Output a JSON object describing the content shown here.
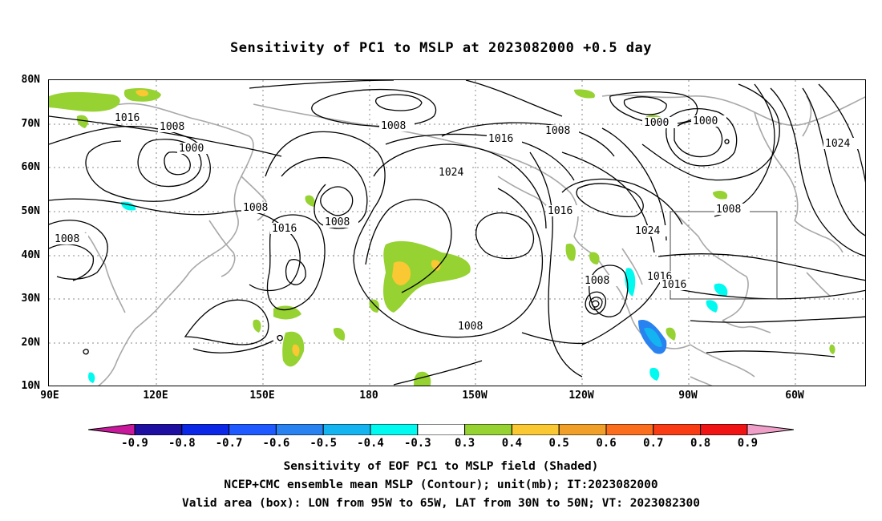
{
  "title": "Sensitivity of PC1 to MSLP at 2023082000 +0.5 day",
  "lat_ticks": [
    "80N",
    "70N",
    "60N",
    "50N",
    "40N",
    "30N",
    "20N",
    "10N"
  ],
  "lon_ticks": [
    "90E",
    "120E",
    "150E",
    "180",
    "150W",
    "120W",
    "90W",
    "60W"
  ],
  "contour_labels": {
    "c1016_nw": "1016",
    "c1008_a": "1008",
    "c1000_a": "1000",
    "c1008_b": "1008",
    "c1008_c": "1008",
    "c1016_b": "1016",
    "c1008_d": "1008",
    "c1024_a": "1024",
    "c1016_c": "1016",
    "c1008_e": "1008",
    "c1016_d": "1016",
    "c1024_b": "1024",
    "c1008_f": "1008",
    "c1016_e": "1016",
    "c1016_f": "1016",
    "c1008_g": "1008",
    "c1000_b": "1000",
    "c1000_c": "1000",
    "c1008_h": "1008",
    "c1024_c": "1024",
    "c1008_i": "1008"
  },
  "colorbar": {
    "labels": [
      "-0.9",
      "-0.8",
      "-0.7",
      "-0.6",
      "-0.5",
      "-0.4",
      "-0.3",
      "0.3",
      "0.4",
      "0.5",
      "0.6",
      "0.7",
      "0.8",
      "0.9"
    ],
    "colors": [
      "#1e0fa0",
      "#0a28e6",
      "#1e5aff",
      "#2882f0",
      "#14b4f0",
      "#00faf0",
      "#ffffff",
      "#96d232",
      "#fac832",
      "#f0a028",
      "#fa6e1e",
      "#fa3c14",
      "#f01414"
    ],
    "low_arrow_color": "#c8189b",
    "high_arrow_color": "#f0a0c8"
  },
  "captions": {
    "line1": "Sensitivity of EOF PC1 to MSLP field (Shaded)",
    "line2": "NCEP+CMC ensemble mean MSLP (Contour); unit(mb); IT:2023082000",
    "line3": "Valid area (box): LON from 95W to 65W, LAT from 30N to 50N; VT: 2023082300"
  }
}
